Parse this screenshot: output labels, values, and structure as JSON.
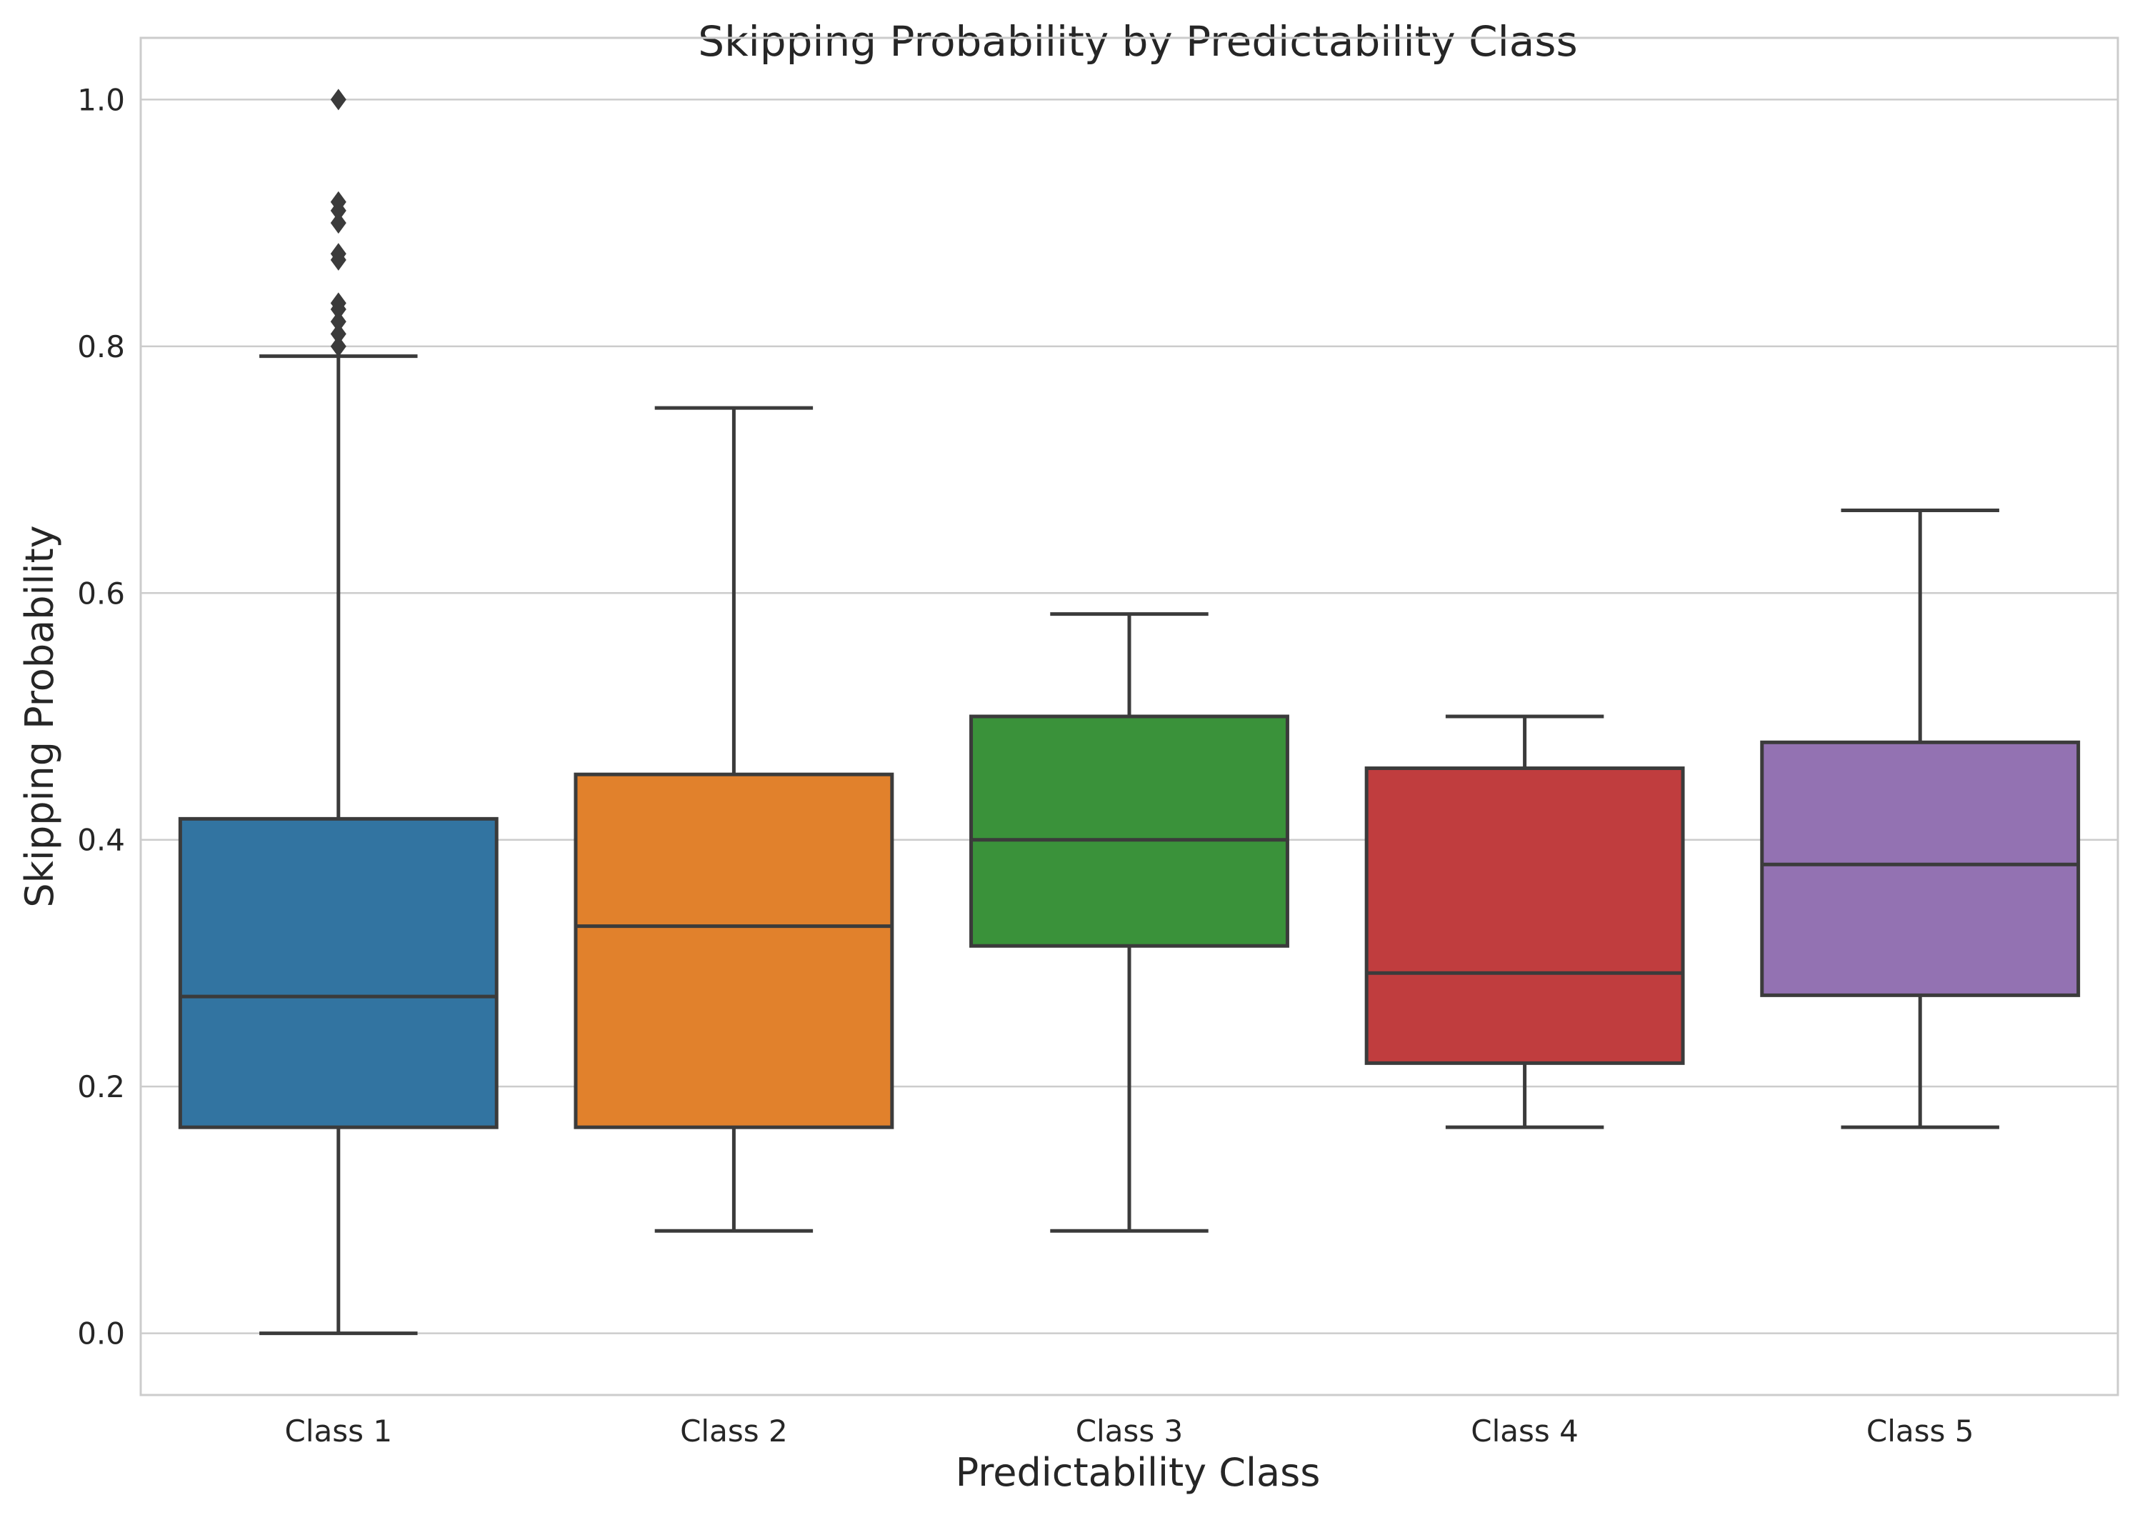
{
  "chart_data": {
    "type": "box",
    "title": "Skipping Probability by Predictability Class",
    "xlabel": "Predictability Class",
    "ylabel": "Skipping Probability",
    "ylim": [
      -0.05,
      1.05
    ],
    "yticks": [
      0.0,
      0.2,
      0.4,
      0.6,
      0.8,
      1.0
    ],
    "ytick_labels": [
      "0.0",
      "0.2",
      "0.4",
      "0.6",
      "0.8",
      "1.0"
    ],
    "grid": "horizontal",
    "categories": [
      "Class 1",
      "Class 2",
      "Class 3",
      "Class 4",
      "Class 5"
    ],
    "boxes": [
      {
        "category": "Class 1",
        "whisker_low": 0.0,
        "q1": 0.167,
        "median": 0.273,
        "q3": 0.417,
        "whisker_high": 0.792,
        "color": "#3274a1",
        "outliers": [
          0.8,
          0.81,
          0.82,
          0.83,
          0.835,
          0.87,
          0.875,
          0.9,
          0.91,
          0.917,
          1.0
        ]
      },
      {
        "category": "Class 2",
        "whisker_low": 0.083,
        "q1": 0.167,
        "median": 0.33,
        "q3": 0.453,
        "whisker_high": 0.75,
        "color": "#e1812c",
        "outliers": []
      },
      {
        "category": "Class 3",
        "whisker_low": 0.083,
        "q1": 0.314,
        "median": 0.4,
        "q3": 0.5,
        "whisker_high": 0.583,
        "color": "#3a923a",
        "outliers": []
      },
      {
        "category": "Class 4",
        "whisker_low": 0.167,
        "q1": 0.219,
        "median": 0.292,
        "q3": 0.458,
        "whisker_high": 0.5,
        "color": "#c03d3e",
        "outliers": []
      },
      {
        "category": "Class 5",
        "whisker_low": 0.167,
        "q1": 0.274,
        "median": 0.38,
        "q3": 0.479,
        "whisker_high": 0.667,
        "color": "#9372b2",
        "outliers": []
      }
    ]
  }
}
